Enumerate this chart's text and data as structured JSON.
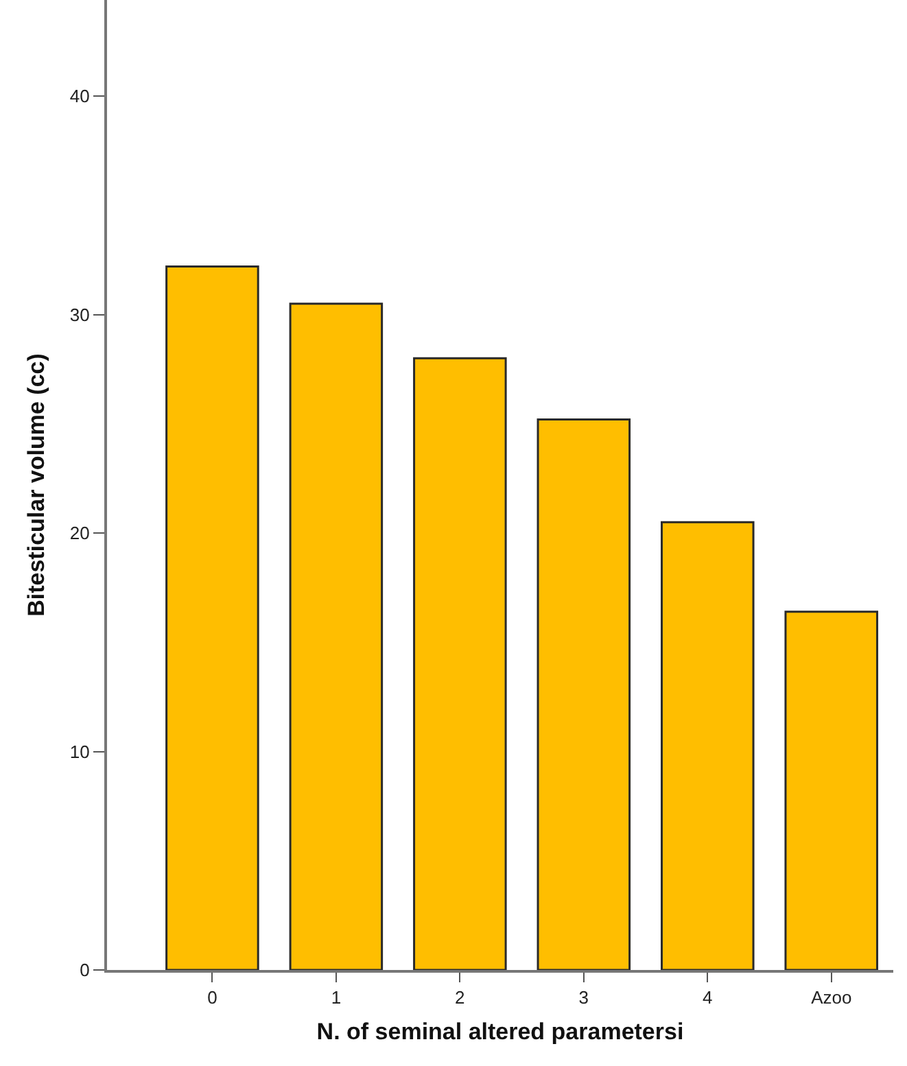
{
  "chart_data": {
    "type": "bar",
    "xlabel": "N. of seminal altered parametersi",
    "ylabel": "Bitesticular volume (cc)",
    "categories": [
      "0",
      "1",
      "2",
      "3",
      "4",
      "Azoo"
    ],
    "values": [
      32.2,
      30.5,
      28.0,
      25.2,
      20.5,
      16.4
    ],
    "color": "#ffbe00",
    "ylim": [
      0,
      44.4
    ],
    "yticks": [
      0,
      10,
      20,
      30,
      40
    ],
    "grid": false,
    "legend": false
  }
}
